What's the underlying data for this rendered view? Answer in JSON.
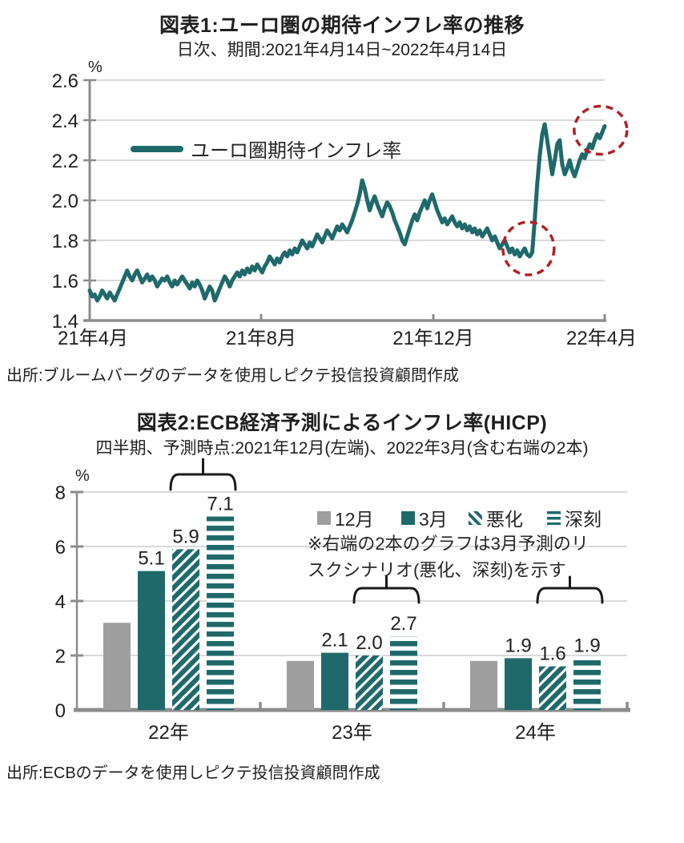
{
  "colors": {
    "teal": "#1F696B",
    "gray": "#9E9E9E",
    "annotation_red": "#B22024",
    "gridline": "#D9D9D9",
    "axis": "#8C8C8C",
    "text": "#1F1F1F"
  },
  "chart_data": [
    {
      "type": "line",
      "title": "図表1:ユーロ圏の期待インフレ率の推移",
      "subtitle": "日次、期間:2021年4月14日~2022年4月14日",
      "unit": "%",
      "ylim": [
        1.4,
        2.6
      ],
      "y_ticks": [
        "2.6",
        "2.4",
        "2.2",
        "2.0",
        "1.8",
        "1.6",
        "1.4"
      ],
      "x_tick_labels": [
        "21年4月",
        "21年8月",
        "21年12月",
        "22年4月"
      ],
      "grid": "horizontal",
      "legend_position": "upper-left-inside",
      "series": [
        {
          "name": "ユーロ圏期待インフレ率",
          "color": "#1F696B",
          "values": [
            1.55,
            1.52,
            1.53,
            1.5,
            1.52,
            1.55,
            1.53,
            1.51,
            1.54,
            1.52,
            1.5,
            1.53,
            1.56,
            1.59,
            1.62,
            1.65,
            1.62,
            1.6,
            1.63,
            1.65,
            1.62,
            1.59,
            1.61,
            1.63,
            1.6,
            1.62,
            1.6,
            1.57,
            1.59,
            1.61,
            1.6,
            1.62,
            1.59,
            1.57,
            1.6,
            1.58,
            1.6,
            1.62,
            1.6,
            1.58,
            1.56,
            1.59,
            1.57,
            1.6,
            1.58,
            1.55,
            1.51,
            1.54,
            1.57,
            1.55,
            1.5,
            1.53,
            1.56,
            1.59,
            1.62,
            1.6,
            1.57,
            1.6,
            1.62,
            1.64,
            1.62,
            1.65,
            1.63,
            1.66,
            1.64,
            1.67,
            1.65,
            1.68,
            1.66,
            1.64,
            1.67,
            1.69,
            1.72,
            1.7,
            1.68,
            1.71,
            1.69,
            1.72,
            1.74,
            1.72,
            1.75,
            1.73,
            1.76,
            1.74,
            1.77,
            1.8,
            1.78,
            1.76,
            1.79,
            1.77,
            1.8,
            1.83,
            1.81,
            1.79,
            1.82,
            1.85,
            1.83,
            1.81,
            1.84,
            1.87,
            1.85,
            1.88,
            1.86,
            1.84,
            1.87,
            1.9,
            1.94,
            1.98,
            2.03,
            2.1,
            2.06,
            2.0,
            1.95,
            1.99,
            2.02,
            1.98,
            1.95,
            1.92,
            1.96,
            1.99,
            1.97,
            1.94,
            1.9,
            1.87,
            1.84,
            1.8,
            1.78,
            1.82,
            1.86,
            1.9,
            1.93,
            1.9,
            1.94,
            1.97,
            2.0,
            1.96,
            2.0,
            2.03,
            1.99,
            1.95,
            1.92,
            1.89,
            1.91,
            1.88,
            1.9,
            1.92,
            1.89,
            1.87,
            1.89,
            1.86,
            1.88,
            1.85,
            1.87,
            1.84,
            1.86,
            1.83,
            1.85,
            1.82,
            1.84,
            1.86,
            1.83,
            1.8,
            1.82,
            1.79,
            1.76,
            1.78,
            1.8,
            1.77,
            1.74,
            1.76,
            1.73,
            1.75,
            1.72,
            1.74,
            1.76,
            1.73,
            1.72,
            1.74,
            1.9,
            2.08,
            2.22,
            2.33,
            2.38,
            2.3,
            2.22,
            2.13,
            2.2,
            2.28,
            2.3,
            2.18,
            2.13,
            2.16,
            2.2,
            2.15,
            2.12,
            2.16,
            2.2,
            2.23,
            2.21,
            2.25,
            2.28,
            2.26,
            2.3,
            2.33,
            2.31,
            2.34,
            2.37
          ]
        }
      ],
      "annotations": [
        {
          "type": "dashed-ellipse",
          "x_frac": 0.852,
          "value": 1.76,
          "rx": 32,
          "ry": 33,
          "color": "#B22024"
        },
        {
          "type": "dashed-ellipse",
          "x_frac": 0.992,
          "value": 2.35,
          "rx": 33,
          "ry": 30,
          "color": "#B22024"
        }
      ],
      "source": "出所:ブルームバーグのデータを使用しピクテ投信投資顧問作成"
    },
    {
      "type": "bar",
      "title": "図表2:ECB経済予測によるインフレ率(HICP)",
      "subtitle": "四半期、予測時点:2021年12月(左端)、2022年3月(含む右端の2本)",
      "unit": "%",
      "categories": [
        "22年",
        "23年",
        "24年"
      ],
      "ylim": [
        0,
        8
      ],
      "y_ticks": [
        "8",
        "6",
        "4",
        "2",
        "0"
      ],
      "grid": "horizontal",
      "series": [
        {
          "name": "12月",
          "style": "solid-gray",
          "color": "#9E9E9E",
          "values": [
            3.2,
            1.8,
            1.8
          ],
          "show_labels": false
        },
        {
          "name": "3月",
          "style": "solid-teal",
          "color": "#1F696B",
          "values": [
            5.1,
            2.1,
            1.9
          ],
          "show_labels": true
        },
        {
          "name": "悪化",
          "style": "diagonal-hatch",
          "color": "#1F696B",
          "values": [
            5.9,
            2.0,
            1.6
          ],
          "show_labels": true
        },
        {
          "name": "深刻",
          "style": "horizontal-stripes",
          "color": "#1F696B",
          "values": [
            7.1,
            2.7,
            1.9
          ],
          "show_labels": true
        }
      ],
      "brace_over_series": [
        2,
        3
      ],
      "note_lines": [
        "※右端の2本のグラフは3月予測のリ",
        "スクシナリオ(悪化、深刻)を示す"
      ],
      "source": "出所:ECBのデータを使用しピクテ投信投資顧問作成"
    }
  ]
}
